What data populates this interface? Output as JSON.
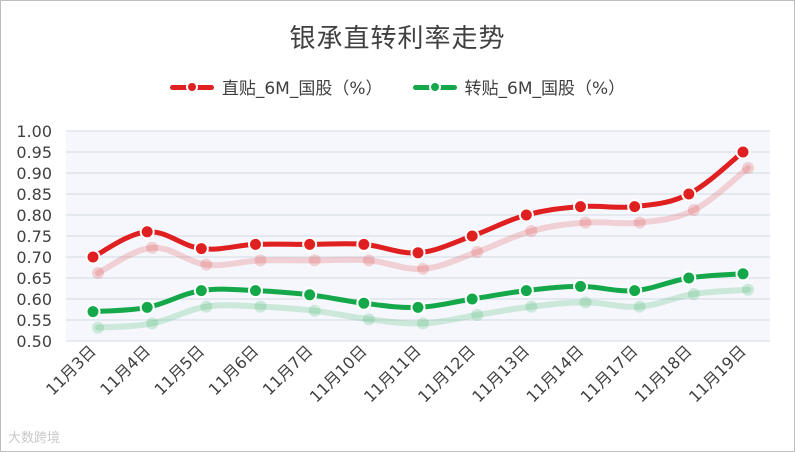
{
  "chart_data": {
    "type": "line",
    "title": "银承直转利率走势",
    "categories": [
      "11月3日",
      "11月4日",
      "11月5日",
      "11月6日",
      "11月7日",
      "11月10日",
      "11月11日",
      "11月12日",
      "11月13日",
      "11月14日",
      "11月17日",
      "11月18日",
      "11月19日"
    ],
    "series": [
      {
        "name": "直贴_6M_国股（%）",
        "color": "#e02020",
        "values": [
          0.7,
          0.76,
          0.72,
          0.73,
          0.73,
          0.73,
          0.71,
          0.75,
          0.8,
          0.82,
          0.82,
          0.85,
          0.95
        ]
      },
      {
        "name": "转贴_6M_国股（%）",
        "color": "#14a84a",
        "values": [
          0.57,
          0.58,
          0.62,
          0.62,
          0.61,
          0.59,
          0.58,
          0.6,
          0.62,
          0.63,
          0.62,
          0.65,
          0.66
        ]
      }
    ],
    "ylim": [
      0.5,
      1.0
    ],
    "yticks": [
      "0.50",
      "0.55",
      "0.60",
      "0.65",
      "0.70",
      "0.75",
      "0.80",
      "0.85",
      "0.90",
      "0.95",
      "1.00"
    ],
    "grid": true,
    "legend": "top-center"
  },
  "watermark": "大数跨境"
}
